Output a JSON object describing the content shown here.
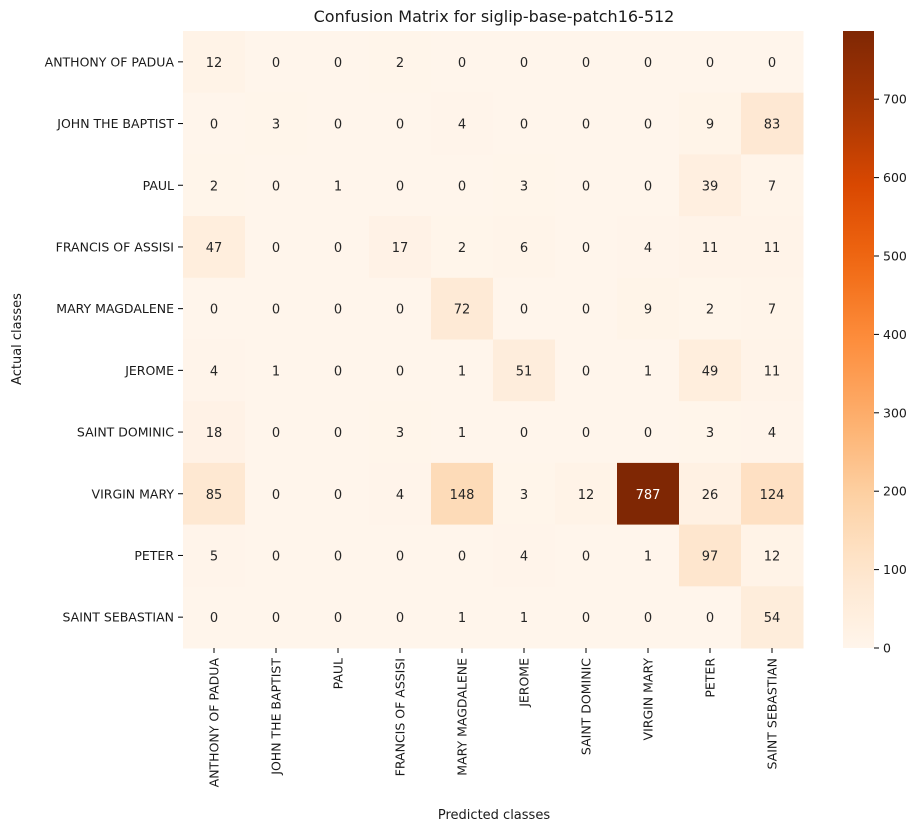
{
  "chart_data": {
    "type": "heatmap",
    "title": "Confusion Matrix for siglip-base-patch16-512",
    "xlabel": "Predicted classes",
    "ylabel": "Actual classes",
    "x_categories": [
      "ANTHONY OF PADUA",
      "JOHN THE BAPTIST",
      "PAUL",
      "FRANCIS OF ASSISI",
      "MARY MAGDALENE",
      "JEROME",
      "SAINT DOMINIC",
      "VIRGIN MARY",
      "PETER",
      "SAINT SEBASTIAN"
    ],
    "y_categories": [
      "ANTHONY OF PADUA",
      "JOHN THE BAPTIST",
      "PAUL",
      "FRANCIS OF ASSISI",
      "MARY MAGDALENE",
      "JEROME",
      "SAINT DOMINIC",
      "VIRGIN MARY",
      "PETER",
      "SAINT SEBASTIAN"
    ],
    "values": [
      [
        12,
        0,
        0,
        2,
        0,
        0,
        0,
        0,
        0,
        0
      ],
      [
        0,
        3,
        0,
        0,
        4,
        0,
        0,
        0,
        9,
        83
      ],
      [
        2,
        0,
        1,
        0,
        0,
        3,
        0,
        0,
        39,
        7
      ],
      [
        47,
        0,
        0,
        17,
        2,
        6,
        0,
        4,
        11,
        11
      ],
      [
        0,
        0,
        0,
        0,
        72,
        0,
        0,
        9,
        2,
        7
      ],
      [
        4,
        1,
        0,
        0,
        1,
        51,
        0,
        1,
        49,
        11
      ],
      [
        18,
        0,
        0,
        3,
        1,
        0,
        0,
        0,
        3,
        4
      ],
      [
        85,
        0,
        0,
        4,
        148,
        3,
        12,
        787,
        26,
        124
      ],
      [
        5,
        0,
        0,
        0,
        0,
        4,
        0,
        1,
        97,
        12
      ],
      [
        0,
        0,
        0,
        0,
        1,
        1,
        0,
        0,
        0,
        54
      ]
    ],
    "colormap": "Oranges",
    "color_range": [
      0,
      787
    ],
    "colorbar_ticks": [
      0,
      100,
      200,
      300,
      400,
      500,
      600,
      700
    ],
    "colors": {
      "low": "#fff5eb",
      "high": "#7f2704",
      "annotation_dark_text": "#262626",
      "annotation_light_text": "#ffffff"
    }
  }
}
